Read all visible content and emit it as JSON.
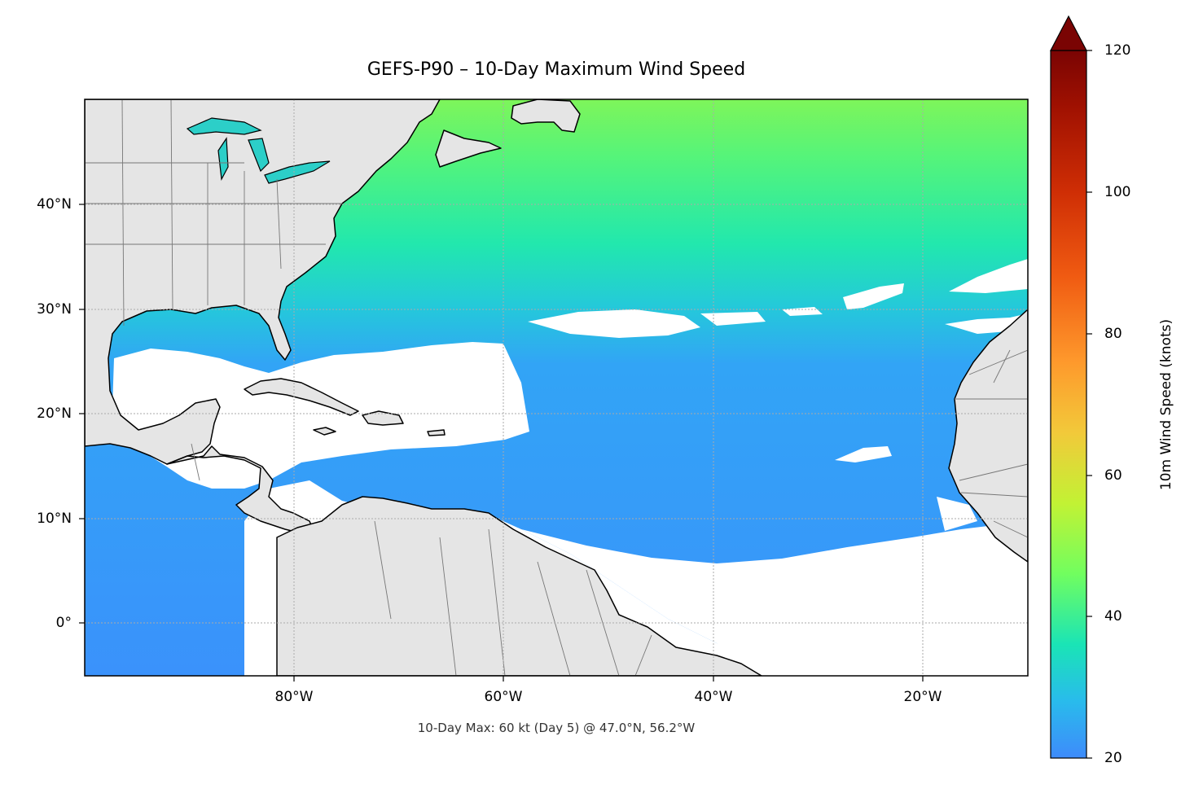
{
  "title": "GEFS-P90 – 10-Day Maximum Wind Speed",
  "footnote": "10-Day Max: 60 kt (Day 5) @ 47.0°N, 56.2°W",
  "map": {
    "lon_range": [
      -100,
      -10
    ],
    "lat_range": [
      -5,
      50
    ],
    "lat_ticks": [
      {
        "v": 40,
        "label": "40°N"
      },
      {
        "v": 30,
        "label": "30°N"
      },
      {
        "v": 20,
        "label": "20°N"
      },
      {
        "v": 10,
        "label": "10°N"
      },
      {
        "v": 0,
        "label": "0°"
      }
    ],
    "lon_ticks": [
      {
        "v": -80,
        "label": "80°W"
      },
      {
        "v": -60,
        "label": "60°W"
      },
      {
        "v": -40,
        "label": "40°W"
      },
      {
        "v": -20,
        "label": "20°W"
      }
    ],
    "land_color": "#e5e5e5",
    "missing_color": "#ffffff",
    "gridlines": true
  },
  "colorbar": {
    "label": "10m Wind Speed (knots)",
    "min": 20,
    "max": 120,
    "extend": "max",
    "ticks": [
      {
        "v": 20,
        "label": "20"
      },
      {
        "v": 40,
        "label": "40"
      },
      {
        "v": 60,
        "label": "60"
      },
      {
        "v": 80,
        "label": "80"
      },
      {
        "v": 100,
        "label": "100"
      },
      {
        "v": 120,
        "label": "120"
      }
    ],
    "colormap": "turbo",
    "extend_color": "#7a0403"
  },
  "max_wind": {
    "value_kt": 60,
    "day": 5,
    "lat": 47.0,
    "lon": -56.2
  }
}
